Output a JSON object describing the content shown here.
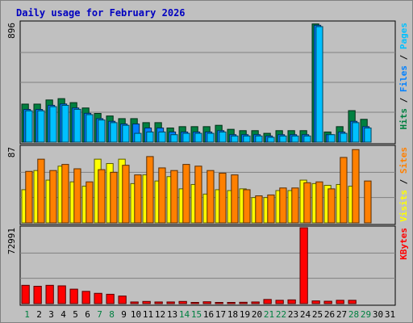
{
  "chart_data": {
    "type": "bar",
    "title": "Daily usage for February 2026",
    "categories": [
      "1",
      "2",
      "3",
      "4",
      "5",
      "6",
      "7",
      "8",
      "9",
      "10",
      "11",
      "12",
      "13",
      "14",
      "15",
      "16",
      "17",
      "18",
      "19",
      "20",
      "21",
      "22",
      "23",
      "24",
      "25",
      "26",
      "27",
      "28",
      "29",
      "30",
      "31"
    ],
    "weekend_days": [
      "1",
      "7",
      "8",
      "14",
      "15",
      "21",
      "22",
      "28",
      "29"
    ],
    "panels": [
      {
        "name": "hits-files-pages",
        "ylabel_tick": "896",
        "ymax": 896,
        "legend": [
          {
            "text": "Pages",
            "color": "#00c0ff"
          },
          {
            "text": " / ",
            "color": "#000000"
          },
          {
            "text": "Files",
            "color": "#0080ff"
          },
          {
            "text": " / ",
            "color": "#000000"
          },
          {
            "text": "Hits",
            "color": "#008040"
          }
        ],
        "series": [
          {
            "name": "Hits",
            "color": "#008040",
            "values": [
              285,
              285,
              316,
              326,
              296,
              256,
              215,
              196,
              176,
              176,
              146,
              146,
              106,
              116,
              116,
              116,
              126,
              96,
              86,
              86,
              66,
              86,
              86,
              86,
              886,
              76,
              116,
              236,
              171,
              0,
              0
            ]
          },
          {
            "name": "Files",
            "color": "#0080ff",
            "values": [
              245,
              245,
              276,
              286,
              256,
              216,
              176,
              156,
              136,
              136,
              106,
              106,
              76,
              76,
              76,
              76,
              86,
              56,
              56,
              56,
              46,
              56,
              56,
              56,
              876,
              56,
              76,
              156,
              116,
              0,
              0
            ]
          },
          {
            "name": "Pages",
            "color": "#00c0ff",
            "values": [
              235,
              235,
              266,
              276,
              246,
              206,
              166,
              146,
              126,
              66,
              76,
              76,
              56,
              66,
              66,
              66,
              76,
              46,
              46,
              46,
              36,
              46,
              46,
              46,
              866,
              56,
              66,
              146,
              106,
              0,
              0
            ]
          }
        ]
      },
      {
        "name": "visits-sites",
        "ylabel_tick": "87",
        "ymax": 87,
        "legend": [
          {
            "text": "Sites",
            "color": "#ff8000"
          },
          {
            "text": " / ",
            "color": "#000000"
          },
          {
            "text": "Visits",
            "color": "#ffff00"
          }
        ],
        "series": [
          {
            "name": "Visits",
            "color": "#ffff00",
            "values": [
              38,
              60,
              49,
              65,
              47,
              42,
              73,
              68,
              73,
              45,
              55,
              48,
              53,
              39,
              44,
              33,
              38,
              37,
              39,
              29,
              29,
              37,
              37,
              49,
              45,
              43,
              44,
              42,
              0,
              0,
              0
            ]
          },
          {
            "name": "Sites",
            "color": "#ff8000",
            "values": [
              59,
              73,
              60,
              67,
              62,
              47,
              61,
              58,
              66,
              55,
              76,
              63,
              60,
              67,
              65,
              60,
              57,
              55,
              38,
              31,
              32,
              40,
              40,
              46,
              47,
              39,
              75,
              84,
              48,
              0,
              0
            ]
          }
        ]
      },
      {
        "name": "kbytes",
        "ylabel_tick": "72991",
        "ymax": 72991,
        "legend": [
          {
            "text": "KBytes",
            "color": "#ff0000"
          }
        ],
        "series": [
          {
            "name": "KBytes",
            "color": "#ff0000",
            "values": [
              17600,
              16700,
              17600,
              17100,
              13900,
              11800,
              9900,
              9000,
              7300,
              1600,
              2100,
              1600,
              1600,
              2100,
              1100,
              1800,
              1100,
              1100,
              1300,
              1600,
              4000,
              3200,
              3600,
              72991,
              2600,
              2300,
              3200,
              3200,
              0,
              0,
              0
            ]
          }
        ]
      }
    ]
  }
}
